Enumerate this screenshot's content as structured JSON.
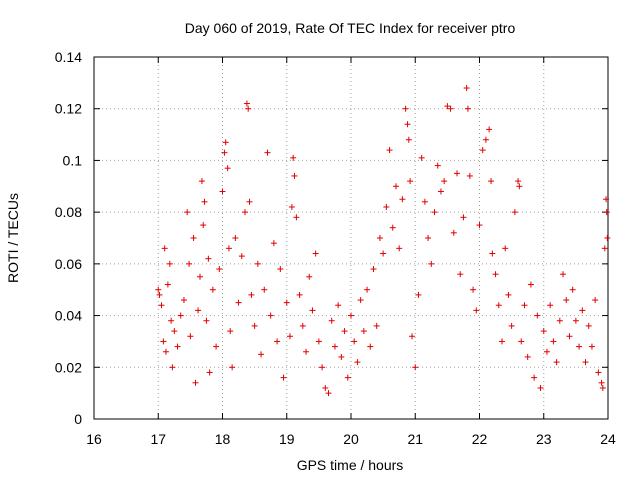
{
  "chart_data": {
    "type": "scatter",
    "title": "Day 060 of 2019, Rate Of TEC Index for receiver ptro",
    "xlabel": "GPS time / hours",
    "ylabel": "ROTI / TECUs",
    "xlim": [
      16,
      24
    ],
    "ylim": [
      0,
      0.14
    ],
    "xticks": [
      16,
      17,
      18,
      19,
      20,
      21,
      22,
      23,
      24
    ],
    "yticks": [
      0,
      0.02,
      0.04,
      0.06,
      0.08,
      0.1,
      0.12,
      0.14
    ],
    "xtick_labels": [
      "16",
      "17",
      "18",
      "19",
      "20",
      "21",
      "22",
      "23",
      "24"
    ],
    "ytick_labels": [
      "0",
      "0.02",
      "0.04",
      "0.06",
      "0.08",
      "0.1",
      "0.12",
      "0.14"
    ],
    "grid": true,
    "marker": "plus",
    "color": "#e00000",
    "series": [
      {
        "name": "ROTI",
        "points": [
          [
            17.0,
            0.05
          ],
          [
            17.02,
            0.048
          ],
          [
            17.05,
            0.044
          ],
          [
            17.08,
            0.03
          ],
          [
            17.1,
            0.066
          ],
          [
            17.12,
            0.026
          ],
          [
            17.15,
            0.052
          ],
          [
            17.18,
            0.06
          ],
          [
            17.2,
            0.038
          ],
          [
            17.22,
            0.02
          ],
          [
            17.25,
            0.034
          ],
          [
            17.3,
            0.028
          ],
          [
            17.35,
            0.04
          ],
          [
            17.4,
            0.046
          ],
          [
            17.45,
            0.08
          ],
          [
            17.48,
            0.06
          ],
          [
            17.5,
            0.032
          ],
          [
            17.55,
            0.07
          ],
          [
            17.58,
            0.014
          ],
          [
            17.62,
            0.042
          ],
          [
            17.65,
            0.055
          ],
          [
            17.68,
            0.092
          ],
          [
            17.7,
            0.075
          ],
          [
            17.72,
            0.084
          ],
          [
            17.75,
            0.038
          ],
          [
            17.78,
            0.062
          ],
          [
            17.8,
            0.018
          ],
          [
            17.85,
            0.05
          ],
          [
            17.9,
            0.028
          ],
          [
            17.95,
            0.058
          ],
          [
            18.0,
            0.088
          ],
          [
            18.03,
            0.103
          ],
          [
            18.05,
            0.107
          ],
          [
            18.08,
            0.097
          ],
          [
            18.1,
            0.066
          ],
          [
            18.12,
            0.034
          ],
          [
            18.15,
            0.02
          ],
          [
            18.2,
            0.07
          ],
          [
            18.25,
            0.045
          ],
          [
            18.3,
            0.063
          ],
          [
            18.35,
            0.08
          ],
          [
            18.38,
            0.122
          ],
          [
            18.4,
            0.12
          ],
          [
            18.42,
            0.084
          ],
          [
            18.45,
            0.048
          ],
          [
            18.5,
            0.036
          ],
          [
            18.55,
            0.06
          ],
          [
            18.6,
            0.025
          ],
          [
            18.65,
            0.05
          ],
          [
            18.7,
            0.103
          ],
          [
            18.75,
            0.04
          ],
          [
            18.8,
            0.068
          ],
          [
            18.85,
            0.03
          ],
          [
            18.9,
            0.058
          ],
          [
            18.95,
            0.016
          ],
          [
            19.0,
            0.045
          ],
          [
            19.05,
            0.032
          ],
          [
            19.08,
            0.082
          ],
          [
            19.1,
            0.101
          ],
          [
            19.12,
            0.094
          ],
          [
            19.15,
            0.078
          ],
          [
            19.2,
            0.048
          ],
          [
            19.25,
            0.036
          ],
          [
            19.3,
            0.026
          ],
          [
            19.35,
            0.055
          ],
          [
            19.4,
            0.042
          ],
          [
            19.45,
            0.064
          ],
          [
            19.5,
            0.03
          ],
          [
            19.55,
            0.02
          ],
          [
            19.6,
            0.012
          ],
          [
            19.65,
            0.01
          ],
          [
            19.7,
            0.038
          ],
          [
            19.75,
            0.028
          ],
          [
            19.8,
            0.044
          ],
          [
            19.85,
            0.024
          ],
          [
            19.9,
            0.034
          ],
          [
            19.95,
            0.016
          ],
          [
            20.0,
            0.04
          ],
          [
            20.05,
            0.03
          ],
          [
            20.1,
            0.022
          ],
          [
            20.15,
            0.046
          ],
          [
            20.2,
            0.034
          ],
          [
            20.25,
            0.05
          ],
          [
            20.3,
            0.028
          ],
          [
            20.35,
            0.058
          ],
          [
            20.4,
            0.036
          ],
          [
            20.45,
            0.07
          ],
          [
            20.5,
            0.064
          ],
          [
            20.55,
            0.082
          ],
          [
            20.6,
            0.104
          ],
          [
            20.65,
            0.074
          ],
          [
            20.7,
            0.09
          ],
          [
            20.75,
            0.066
          ],
          [
            20.8,
            0.085
          ],
          [
            20.85,
            0.12
          ],
          [
            20.88,
            0.114
          ],
          [
            20.9,
            0.108
          ],
          [
            20.92,
            0.092
          ],
          [
            20.95,
            0.032
          ],
          [
            21.0,
            0.02
          ],
          [
            21.05,
            0.048
          ],
          [
            21.1,
            0.101
          ],
          [
            21.15,
            0.084
          ],
          [
            21.2,
            0.07
          ],
          [
            21.25,
            0.06
          ],
          [
            21.3,
            0.08
          ],
          [
            21.35,
            0.098
          ],
          [
            21.4,
            0.088
          ],
          [
            21.45,
            0.092
          ],
          [
            21.5,
            0.121
          ],
          [
            21.55,
            0.12
          ],
          [
            21.6,
            0.072
          ],
          [
            21.65,
            0.095
          ],
          [
            21.7,
            0.056
          ],
          [
            21.75,
            0.078
          ],
          [
            21.8,
            0.128
          ],
          [
            21.82,
            0.12
          ],
          [
            21.85,
            0.094
          ],
          [
            21.9,
            0.05
          ],
          [
            21.95,
            0.042
          ],
          [
            22.0,
            0.075
          ],
          [
            22.05,
            0.104
          ],
          [
            22.1,
            0.108
          ],
          [
            22.15,
            0.112
          ],
          [
            22.18,
            0.092
          ],
          [
            22.2,
            0.064
          ],
          [
            22.25,
            0.056
          ],
          [
            22.3,
            0.044
          ],
          [
            22.35,
            0.03
          ],
          [
            22.4,
            0.066
          ],
          [
            22.45,
            0.048
          ],
          [
            22.5,
            0.036
          ],
          [
            22.55,
            0.08
          ],
          [
            22.6,
            0.092
          ],
          [
            22.62,
            0.09
          ],
          [
            22.65,
            0.03
          ],
          [
            22.7,
            0.044
          ],
          [
            22.75,
            0.024
          ],
          [
            22.8,
            0.052
          ],
          [
            22.85,
            0.016
          ],
          [
            22.9,
            0.04
          ],
          [
            22.95,
            0.012
          ],
          [
            23.0,
            0.034
          ],
          [
            23.05,
            0.026
          ],
          [
            23.1,
            0.044
          ],
          [
            23.15,
            0.03
          ],
          [
            23.2,
            0.022
          ],
          [
            23.25,
            0.038
          ],
          [
            23.3,
            0.056
          ],
          [
            23.35,
            0.046
          ],
          [
            23.4,
            0.032
          ],
          [
            23.45,
            0.05
          ],
          [
            23.5,
            0.038
          ],
          [
            23.55,
            0.028
          ],
          [
            23.6,
            0.042
          ],
          [
            23.65,
            0.022
          ],
          [
            23.7,
            0.036
          ],
          [
            23.75,
            0.028
          ],
          [
            23.8,
            0.046
          ],
          [
            23.85,
            0.018
          ],
          [
            23.9,
            0.014
          ],
          [
            23.92,
            0.012
          ],
          [
            23.95,
            0.066
          ],
          [
            23.97,
            0.085
          ],
          [
            23.98,
            0.08
          ],
          [
            23.99,
            0.07
          ]
        ]
      }
    ]
  }
}
